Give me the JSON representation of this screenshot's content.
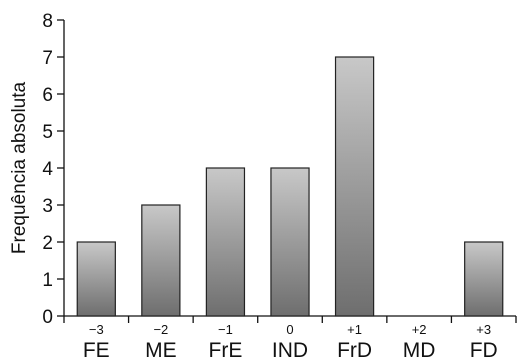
{
  "chart_data": {
    "type": "bar",
    "ylabel": "Frequência absoluta",
    "xlabel": "",
    "ylim": [
      0,
      8
    ],
    "yticks": [
      0,
      1,
      2,
      3,
      4,
      5,
      6,
      7,
      8
    ],
    "scores": [
      "−3",
      "−2",
      "−1",
      "0",
      "+1",
      "+2",
      "+3"
    ],
    "categories": [
      "FE",
      "ME",
      "FrE",
      "IND",
      "FrD",
      "MD",
      "FD"
    ],
    "values": [
      2,
      3,
      4,
      4,
      7,
      0,
      2
    ],
    "grid": false,
    "colors": {
      "bar_top": "#c8c8c8",
      "bar_bottom": "#6e6e6e",
      "axis": "#111111"
    }
  }
}
